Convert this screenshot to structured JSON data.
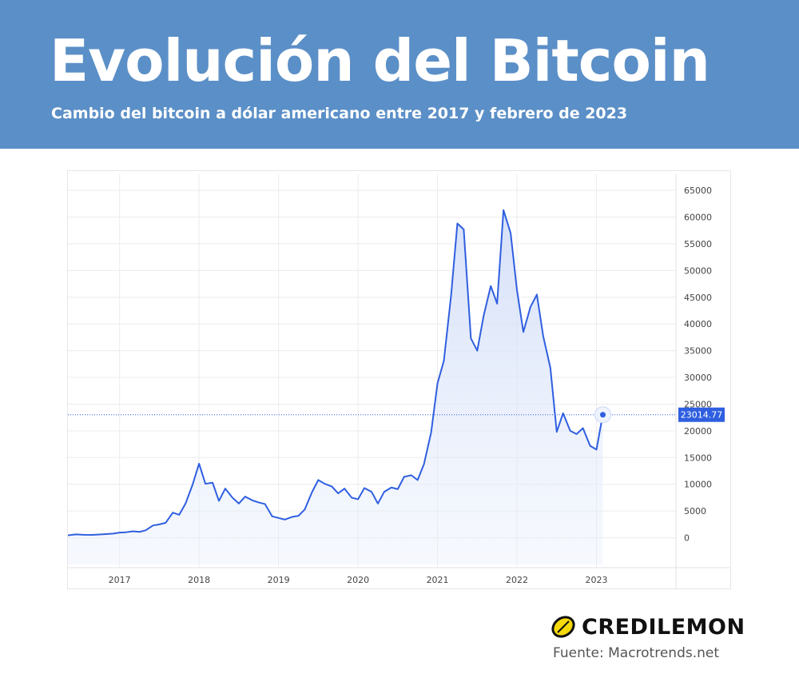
{
  "header": {
    "title": "Evolución del Bitcoin",
    "subtitle": "Cambio del bitcoin a dólar americano entre 2017 y febrero de 2023"
  },
  "brand": {
    "name": "CREDILEMON",
    "icon": "lemon-icon",
    "accent": "#f5d90a"
  },
  "source": "Fuente: Macrotrends.net",
  "colors": {
    "banner": "#5b8fc7",
    "line": "#2f5fe0",
    "fill": "#e6edfb",
    "grid": "#ececec",
    "current_label_bg": "#2f5fe0"
  },
  "chart_data": {
    "type": "area",
    "title": "",
    "xlabel": "",
    "ylabel": "",
    "xlim": [
      2016.35,
      2024.0
    ],
    "ylim": [
      -5000,
      68000
    ],
    "x_ticks": [
      2017,
      2018,
      2019,
      2020,
      2021,
      2022,
      2023
    ],
    "x_tick_labels": [
      "2017",
      "2018",
      "2019",
      "2020",
      "2021",
      "2022",
      "2023"
    ],
    "y_ticks": [
      0,
      5000,
      10000,
      15000,
      20000,
      25000,
      30000,
      35000,
      40000,
      45000,
      50000,
      55000,
      60000,
      65000
    ],
    "y_tick_labels": [
      "0",
      "5000",
      "10000",
      "15000",
      "20000",
      "25000",
      "30000",
      "35000",
      "40000",
      "45000",
      "50000",
      "55000",
      "60000",
      "65000"
    ],
    "grid": true,
    "y_axis_position": "right",
    "current_value": 23014.77,
    "current_value_label": "23014.77",
    "series": [
      {
        "x": [
          2016.35,
          2016.45,
          2016.55,
          2016.65,
          2016.75,
          2016.85,
          2016.92,
          2017.0,
          2017.08,
          2017.17,
          2017.25,
          2017.33,
          2017.42,
          2017.5,
          2017.58,
          2017.67,
          2017.75,
          2017.83,
          2017.92,
          2018.0,
          2018.08,
          2018.17,
          2018.25,
          2018.33,
          2018.42,
          2018.5,
          2018.58,
          2018.67,
          2018.75,
          2018.83,
          2018.92,
          2019.0,
          2019.08,
          2019.17,
          2019.25,
          2019.33,
          2019.42,
          2019.5,
          2019.58,
          2019.67,
          2019.75,
          2019.83,
          2019.92,
          2020.0,
          2020.08,
          2020.17,
          2020.25,
          2020.33,
          2020.42,
          2020.5,
          2020.58,
          2020.67,
          2020.75,
          2020.83,
          2020.92,
          2021.0,
          2021.08,
          2021.17,
          2021.25,
          2021.33,
          2021.42,
          2021.5,
          2021.58,
          2021.67,
          2021.75,
          2021.83,
          2021.92,
          2022.0,
          2022.08,
          2022.17,
          2022.25,
          2022.33,
          2022.42,
          2022.5,
          2022.58,
          2022.67,
          2022.75,
          2022.83,
          2022.92,
          2023.0,
          2023.08
        ],
        "y": [
          450,
          620,
          560,
          540,
          610,
          700,
          780,
          960,
          1030,
          1200,
          1100,
          1400,
          2300,
          2500,
          2800,
          4700,
          4300,
          6400,
          10000,
          13860,
          10100,
          10300,
          6900,
          9200,
          7500,
          6400,
          7700,
          7000,
          6600,
          6300,
          4000,
          3700,
          3400,
          3900,
          4100,
          5300,
          8500,
          10800,
          10100,
          9600,
          8300,
          9200,
          7500,
          7200,
          9300,
          8600,
          6400,
          8600,
          9400,
          9100,
          11400,
          11700,
          10800,
          13800,
          19700,
          28900,
          33100,
          45200,
          58800,
          57700,
          37300,
          35000,
          41500,
          47100,
          43800,
          61300,
          57000,
          46300,
          38500,
          43200,
          45500,
          37700,
          31800,
          19800,
          23300,
          20000,
          19400,
          20500,
          17200,
          16500,
          23100
        ]
      }
    ]
  }
}
